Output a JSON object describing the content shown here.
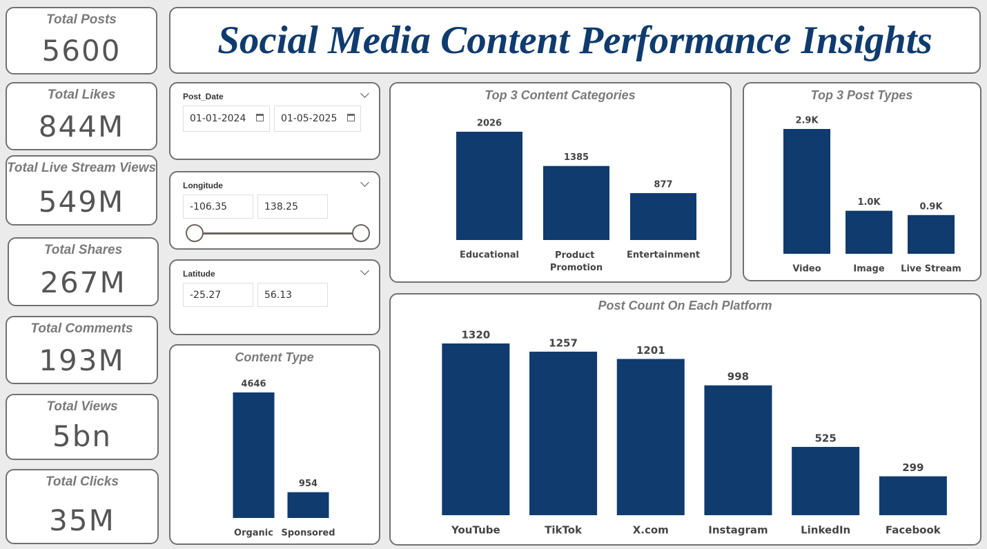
{
  "title": "Social Media Content Performance Insights",
  "kpis": [
    {
      "label": "Total Posts",
      "value": "5600"
    },
    {
      "label": "Total Likes",
      "value": "844M"
    },
    {
      "label": "Total Live Stream Views",
      "value": "549M"
    },
    {
      "label": "Total Shares",
      "value": "267M"
    },
    {
      "label": "Total Comments",
      "value": "193M"
    },
    {
      "label": "Total Views",
      "value": "5bn"
    },
    {
      "label": "Total Clicks",
      "value": "35M"
    }
  ],
  "filters": [
    {
      "label": "Post_Date",
      "from": "01-01-2024",
      "to": "01-05-2025"
    },
    {
      "label": "Longitude",
      "from": "-106.35",
      "to": "138.25"
    },
    {
      "label": "Latitude",
      "from": "-25.27",
      "to": "56.13"
    }
  ],
  "chart_data": [
    {
      "type": "bar",
      "title": "Top 3 Content Categories",
      "categories": [
        "Educational",
        "Product Promotion",
        "Entertainment"
      ],
      "values": [
        2026,
        1385,
        877
      ],
      "color": "#0f3b6e"
    },
    {
      "type": "bar",
      "title": "Top 3 Post Types",
      "categories": [
        "Video",
        "Image",
        "Live Stream"
      ],
      "values": [
        2900,
        1000,
        900
      ],
      "value_labels": [
        "2.9K",
        "1.0K",
        "0.9K"
      ],
      "color": "#0f3b6e"
    },
    {
      "type": "bar",
      "title": "Content Type",
      "categories": [
        "Organic",
        "Sponsored"
      ],
      "values": [
        4646,
        954
      ],
      "color": "#0f3b6e"
    },
    {
      "type": "bar",
      "title": "Post Count On Each Platform",
      "categories": [
        "YouTube",
        "TikTok",
        "X.com",
        "Instagram",
        "LinkedIn",
        "Facebook"
      ],
      "values": [
        1320,
        1257,
        1201,
        998,
        525,
        299
      ],
      "color": "#0f3b6e"
    }
  ]
}
